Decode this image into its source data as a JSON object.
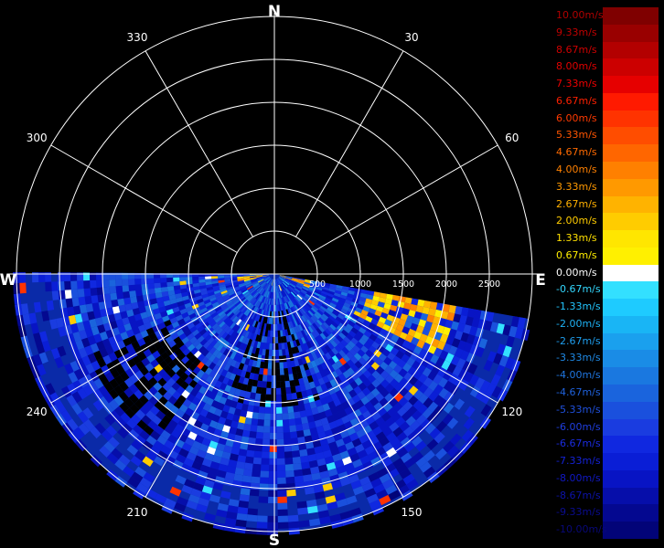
{
  "radar": {
    "compass": {
      "north": "N",
      "south": "S",
      "east": "E",
      "west": "W"
    },
    "bearing_labels": [
      {
        "deg": 30,
        "text": "30"
      },
      {
        "deg": 60,
        "text": "60"
      },
      {
        "deg": 120,
        "text": "120"
      },
      {
        "deg": 150,
        "text": "150"
      },
      {
        "deg": 210,
        "text": "210"
      },
      {
        "deg": 240,
        "text": "240"
      },
      {
        "deg": 300,
        "text": "300"
      },
      {
        "deg": 330,
        "text": "330"
      }
    ],
    "range_labels": [
      "500",
      "1000",
      "1500",
      "2000",
      "2500"
    ],
    "range_max": 2500,
    "scan_sector": {
      "from_deg": 100,
      "to_deg": 270
    }
  },
  "legend": {
    "items": [
      {
        "label": "10.00m/s",
        "color": "#7f0000",
        "text_color": "#b00000"
      },
      {
        "label": "9.33m/s",
        "color": "#990000",
        "text_color": "#c00000"
      },
      {
        "label": "8.67m/s",
        "color": "#b30000",
        "text_color": "#d00000"
      },
      {
        "label": "8.00m/s",
        "color": "#cc0000",
        "text_color": "#e00000"
      },
      {
        "label": "7.33m/s",
        "color": "#e60000",
        "text_color": "#f00000"
      },
      {
        "label": "6.67m/s",
        "color": "#ff1a00",
        "text_color": "#ff2000"
      },
      {
        "label": "6.00m/s",
        "color": "#ff3300",
        "text_color": "#ff3a00"
      },
      {
        "label": "5.33m/s",
        "color": "#ff4d00",
        "text_color": "#ff5500"
      },
      {
        "label": "4.67m/s",
        "color": "#ff6600",
        "text_color": "#ff6a00"
      },
      {
        "label": "4.00m/s",
        "color": "#ff8000",
        "text_color": "#ff8000"
      },
      {
        "label": "3.33m/s",
        "color": "#ff9900",
        "text_color": "#ff9900"
      },
      {
        "label": "2.67m/s",
        "color": "#ffb300",
        "text_color": "#ffb000"
      },
      {
        "label": "2.00m/s",
        "color": "#ffcc00",
        "text_color": "#ffcc00"
      },
      {
        "label": "1.33m/s",
        "color": "#ffe600",
        "text_color": "#ffe000"
      },
      {
        "label": "0.67m/s",
        "color": "#fff000",
        "text_color": "#ffee00"
      },
      {
        "label": "0.00m/s",
        "color": "#ffffff",
        "text_color": "#ffffff"
      },
      {
        "label": "-0.67m/s",
        "color": "#33e0ff",
        "text_color": "#33d8ff"
      },
      {
        "label": "-1.33m/s",
        "color": "#1ecbff",
        "text_color": "#22c6ff"
      },
      {
        "label": "-2.00m/s",
        "color": "#19b5f5",
        "text_color": "#1eb2f5"
      },
      {
        "label": "-2.67m/s",
        "color": "#1aa0ee",
        "text_color": "#1f9eee"
      },
      {
        "label": "-3.33m/s",
        "color": "#1a8ce6",
        "text_color": "#1f8ae6"
      },
      {
        "label": "-4.00m/s",
        "color": "#1a78e0",
        "text_color": "#1f76e0"
      },
      {
        "label": "-4.67m/s",
        "color": "#1a64dd",
        "text_color": "#1f62dd"
      },
      {
        "label": "-5.33m/s",
        "color": "#1a50dd",
        "text_color": "#1f50dd"
      },
      {
        "label": "-6.00m/s",
        "color": "#1a3ce0",
        "text_color": "#1f3ee0"
      },
      {
        "label": "-6.67m/s",
        "color": "#1028e0",
        "text_color": "#1a2ce0"
      },
      {
        "label": "-7.33m/s",
        "color": "#0a1ed6",
        "text_color": "#1422d6"
      },
      {
        "label": "-8.00m/s",
        "color": "#0814c4",
        "text_color": "#1018c4"
      },
      {
        "label": "-8.67m/s",
        "color": "#060eaa",
        "text_color": "#0c12aa"
      },
      {
        "label": "-9.33m/s",
        "color": "#040890",
        "text_color": "#0a0c90"
      },
      {
        "label": "-10.00m/s",
        "color": "#020478",
        "text_color": "#080878"
      }
    ]
  }
}
